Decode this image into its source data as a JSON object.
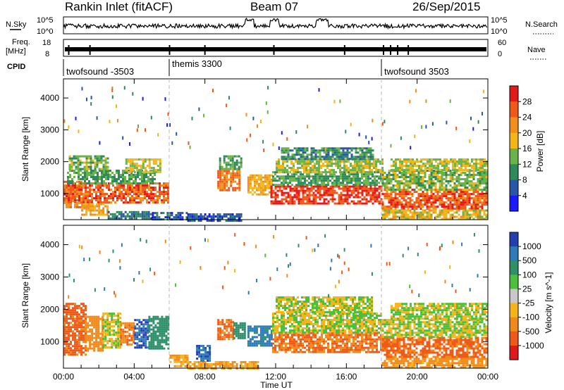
{
  "header": {
    "station": "Rankin Inlet (fitACF)",
    "beam": "Beam 07",
    "date": "26/Sep/2015"
  },
  "top_panels": {
    "nsky_label": "N.Sky",
    "nsky_ticks": [
      "10^5",
      "10^0"
    ],
    "nsearch_label": "N.Search",
    "nsearch_ticks": [
      "10^5",
      "10^0"
    ],
    "freq_label": "Freq.",
    "freq_unit": "[MHz]",
    "freq_ticks": [
      "18",
      "8"
    ],
    "nave_label": "Nave",
    "nave_ticks": [
      "60",
      "0"
    ],
    "cpid_label": "CPID",
    "cpid_segments": [
      {
        "label": "twofsound -3503",
        "start_hour": 0
      },
      {
        "label": "themis 3300",
        "start_hour": 6
      },
      {
        "label": "twofsound 3503",
        "start_hour": 18
      }
    ]
  },
  "chart_data": [
    {
      "type": "heatmap",
      "quantity": "Power",
      "ylabel": "Slant Range [km]",
      "ylim": [
        180,
        4600
      ],
      "yticks": [
        "1000",
        "2000",
        "3000",
        "4000"
      ],
      "xlim_hours": [
        0,
        24
      ],
      "colorbar_label": "Power [dB]",
      "colorbar_ticks": [
        "4",
        "8",
        "12",
        "16",
        "20",
        "24",
        "28"
      ],
      "colorbar_colors": [
        "#1a1aff",
        "#2a56a8",
        "#2e8a5a",
        "#6ab34a",
        "#f2b51a",
        "#f08f1a",
        "#ef5a1a",
        "#e21a1a"
      ],
      "blocks": [
        {
          "x": [
            0.0,
            1.0
          ],
          "y": [
            600,
            1400
          ],
          "v": 24
        },
        {
          "x": [
            0.0,
            5.9
          ],
          "y": [
            700,
            1350
          ],
          "v": 26
        },
        {
          "x": [
            0.2,
            5.2
          ],
          "y": [
            1350,
            1750
          ],
          "v": 12
        },
        {
          "x": [
            0.3,
            2.5
          ],
          "y": [
            1750,
            2200
          ],
          "v": 14
        },
        {
          "x": [
            3.5,
            5.5
          ],
          "y": [
            1700,
            2100
          ],
          "v": 16
        },
        {
          "x": [
            1.0,
            2.5
          ],
          "y": [
            350,
            700
          ],
          "v": 20
        },
        {
          "x": [
            2.5,
            5.0
          ],
          "y": [
            200,
            450
          ],
          "v": 8
        },
        {
          "x": [
            5.0,
            7.0
          ],
          "y": [
            200,
            420
          ],
          "v": 6
        },
        {
          "x": [
            7.0,
            10.0
          ],
          "y": [
            180,
            380
          ],
          "v": 6
        },
        {
          "x": [
            8.7,
            10.0
          ],
          "y": [
            1100,
            1800
          ],
          "v": 24
        },
        {
          "x": [
            8.8,
            10.0
          ],
          "y": [
            1800,
            2200
          ],
          "v": 12
        },
        {
          "x": [
            10.4,
            11.8
          ],
          "y": [
            1000,
            1600
          ],
          "v": 20
        },
        {
          "x": [
            11.7,
            18.0
          ],
          "y": [
            700,
            1250
          ],
          "v": 28
        },
        {
          "x": [
            11.8,
            18.0
          ],
          "y": [
            1300,
            1700
          ],
          "v": 12
        },
        {
          "x": [
            12.0,
            18.0
          ],
          "y": [
            1700,
            2100
          ],
          "v": 16
        },
        {
          "x": [
            12.3,
            17.5
          ],
          "y": [
            2100,
            2450
          ],
          "v": 10
        },
        {
          "x": [
            18.0,
            23.95
          ],
          "y": [
            550,
            1150
          ],
          "v": 26
        },
        {
          "x": [
            18.0,
            23.95
          ],
          "y": [
            1150,
            1750
          ],
          "v": 14
        },
        {
          "x": [
            18.5,
            23.95
          ],
          "y": [
            1750,
            2100
          ],
          "v": 16
        },
        {
          "x": [
            18.0,
            23.95
          ],
          "y": [
            200,
            500
          ],
          "v": 18
        }
      ]
    },
    {
      "type": "heatmap",
      "quantity": "Velocity",
      "ylabel": "Slant Range [km]",
      "xlabel": "Time UT",
      "ylim": [
        180,
        4600
      ],
      "yticks": [
        "1000",
        "2000",
        "3000",
        "4000"
      ],
      "xlim_hours": [
        0,
        24
      ],
      "xticks": [
        "00:00",
        "04:00",
        "08:00",
        "12:00",
        "16:00",
        "20:00",
        "00:00"
      ],
      "colorbar_label": "Velocity [m s^-1]",
      "colorbar_ticks": [
        "1000",
        "500",
        "100",
        "25",
        "-25",
        "-100",
        "-500",
        "-1000"
      ],
      "colorbar_colors": [
        "#2440b0",
        "#2f7ab8",
        "#2e8f6a",
        "#4cc03a",
        "#c8c8c8",
        "#f5b51a",
        "#f08a1a",
        "#ee5a1a",
        "#e01a1a"
      ],
      "blocks": [
        {
          "x": [
            0.0,
            1.2
          ],
          "y": [
            600,
            2200
          ],
          "v": -400
        },
        {
          "x": [
            1.2,
            2.2
          ],
          "y": [
            700,
            1800
          ],
          "v": -150
        },
        {
          "x": [
            2.2,
            3.2
          ],
          "y": [
            800,
            1900
          ],
          "v": 0
        },
        {
          "x": [
            3.2,
            4.0
          ],
          "y": [
            900,
            1600
          ],
          "v": -300
        },
        {
          "x": [
            4.0,
            4.8
          ],
          "y": [
            800,
            1700
          ],
          "v": 700
        },
        {
          "x": [
            4.8,
            5.9
          ],
          "y": [
            800,
            1800
          ],
          "v": 200
        },
        {
          "x": [
            6.0,
            7.0
          ],
          "y": [
            250,
            600
          ],
          "v": -60
        },
        {
          "x": [
            7.0,
            11.0
          ],
          "y": [
            180,
            400
          ],
          "v": -60
        },
        {
          "x": [
            7.5,
            8.3
          ],
          "y": [
            400,
            900
          ],
          "v": 700
        },
        {
          "x": [
            8.7,
            9.6
          ],
          "y": [
            1100,
            1700
          ],
          "v": -300
        },
        {
          "x": [
            9.6,
            10.2
          ],
          "y": [
            1100,
            1600
          ],
          "v": 200
        },
        {
          "x": [
            10.4,
            11.8
          ],
          "y": [
            900,
            1500
          ],
          "v": 400
        },
        {
          "x": [
            11.8,
            18.0
          ],
          "y": [
            700,
            1300
          ],
          "v": -300
        },
        {
          "x": [
            11.8,
            18.0
          ],
          "y": [
            1300,
            1900
          ],
          "v": 0
        },
        {
          "x": [
            12.0,
            17.5
          ],
          "y": [
            1900,
            2400
          ],
          "v": 0
        },
        {
          "x": [
            18.0,
            23.95
          ],
          "y": [
            550,
            1150
          ],
          "v": -350
        },
        {
          "x": [
            18.0,
            23.95
          ],
          "y": [
            1150,
            1700
          ],
          "v": 0
        },
        {
          "x": [
            18.5,
            23.95
          ],
          "y": [
            1700,
            2200
          ],
          "v": 0
        },
        {
          "x": [
            18.0,
            23.95
          ],
          "y": [
            200,
            500
          ],
          "v": -80
        }
      ]
    }
  ]
}
